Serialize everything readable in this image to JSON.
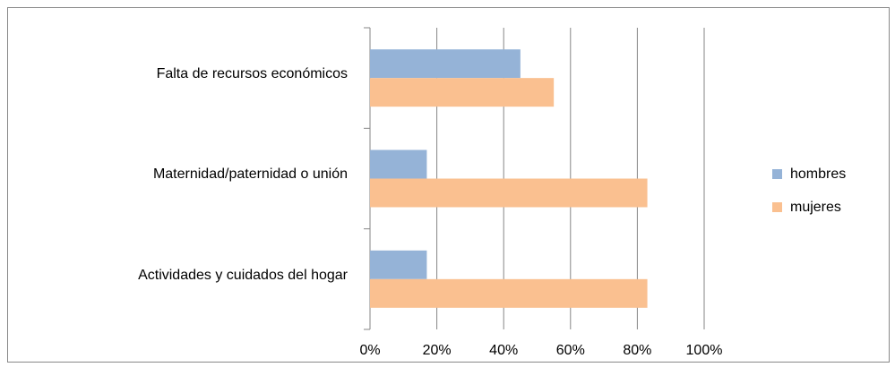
{
  "chart_data": {
    "type": "bar",
    "orientation": "horizontal",
    "categories": [
      "Falta de recursos económicos",
      "Maternidad/paternidad o unión",
      "Actividades y cuidados del hogar"
    ],
    "series": [
      {
        "name": "hombres",
        "color": "#95b3d7",
        "values": [
          45,
          17,
          17
        ]
      },
      {
        "name": "mujeres",
        "color": "#fac090",
        "values": [
          55,
          83,
          83
        ]
      }
    ],
    "xlim": [
      0,
      100
    ],
    "xticks": [
      {
        "value": 0,
        "label": "0%"
      },
      {
        "value": 20,
        "label": "20%"
      },
      {
        "value": 40,
        "label": "40%"
      },
      {
        "value": 60,
        "label": "60%"
      },
      {
        "value": 80,
        "label": "80%"
      },
      {
        "value": 100,
        "label": "100%"
      }
    ],
    "grid": true,
    "legend": "right"
  }
}
